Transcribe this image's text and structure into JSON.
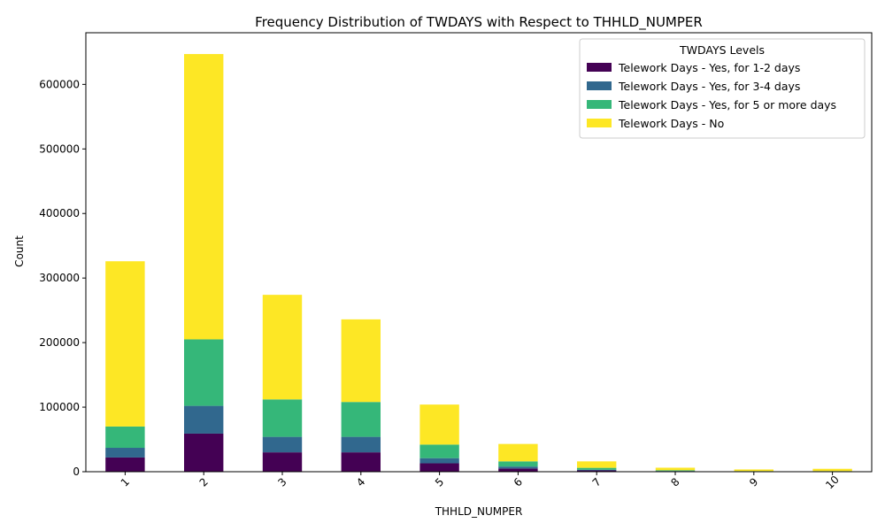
{
  "chart_data": {
    "type": "bar",
    "stacked": true,
    "title": "Frequency Distribution of TWDAYS with Respect to THHLD_NUMPER",
    "xlabel": "THHLD_NUMPER",
    "ylabel": "Count",
    "categories": [
      "1",
      "2",
      "3",
      "4",
      "5",
      "6",
      "7",
      "8",
      "9",
      "10"
    ],
    "ylim": [
      0,
      680000
    ],
    "yticks": [
      0,
      100000,
      200000,
      300000,
      400000,
      500000,
      600000
    ],
    "ytick_labels": [
      "0",
      "100000",
      "200000",
      "300000",
      "400000",
      "500000",
      "600000"
    ],
    "x_tick_rotation": 45,
    "legend": {
      "title": "TWDAYS Levels",
      "placement": "top-right"
    },
    "series": [
      {
        "name": "Telework Days - Yes, for 1-2 days",
        "color": "#440154",
        "values": [
          22000,
          59000,
          30000,
          30000,
          13000,
          5000,
          2000,
          700,
          300,
          300
        ]
      },
      {
        "name": "Telework Days - Yes, for 3-4 days",
        "color": "#31688e",
        "values": [
          15000,
          43000,
          24000,
          24000,
          8000,
          3000,
          1000,
          500,
          200,
          200
        ]
      },
      {
        "name": "Telework Days - Yes, for 5 or more days",
        "color": "#35b779",
        "values": [
          33000,
          103000,
          58000,
          54000,
          21000,
          8000,
          3000,
          1000,
          500,
          500
        ]
      },
      {
        "name": "Telework Days - No",
        "color": "#fde725",
        "values": [
          256000,
          442000,
          162000,
          128000,
          62000,
          27000,
          10000,
          4000,
          2500,
          3500
        ]
      }
    ]
  }
}
